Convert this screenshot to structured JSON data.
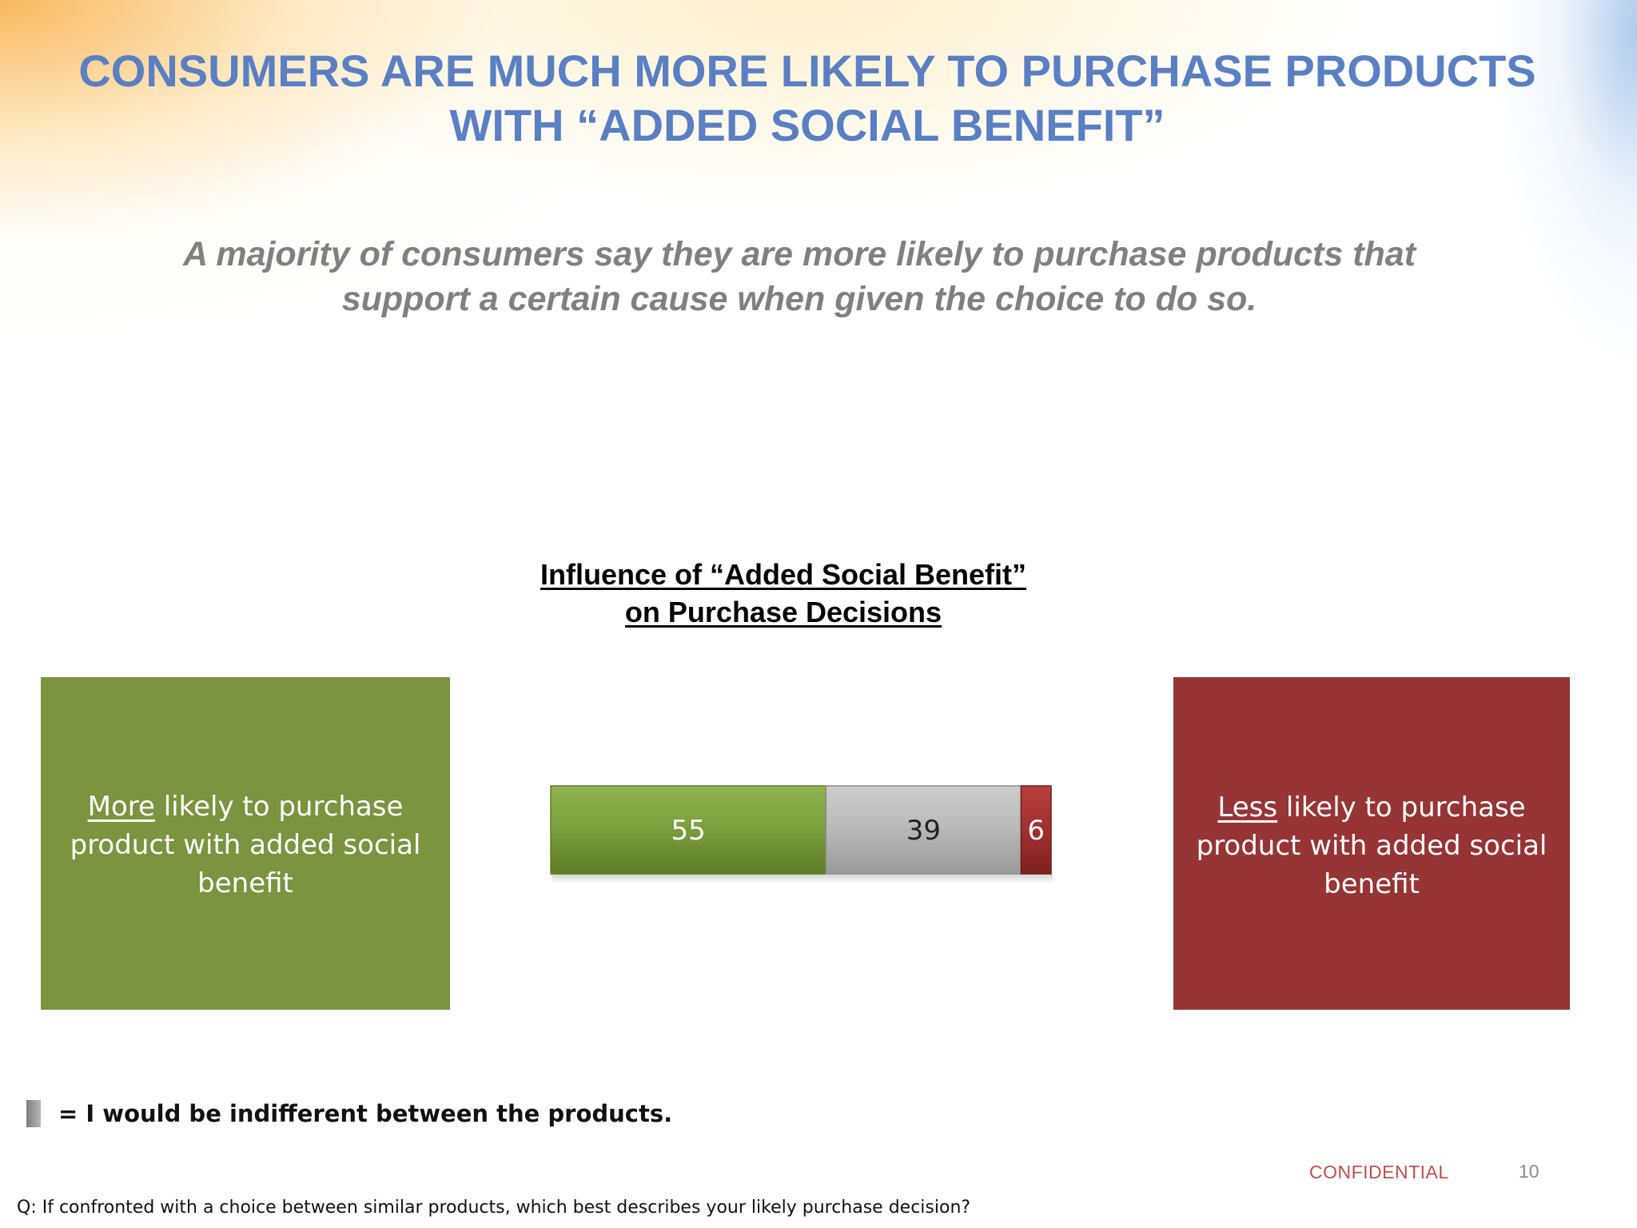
{
  "slide": {
    "title_lines": [
      "CONSUMERS ARE MUCH MORE LIKELY TO PURCHASE PRODUCTS",
      "WITH “ADDED SOCIAL BENEFIT”"
    ],
    "subtitle_lines": [
      "A majority of consumers say they are more likely to purchase products that",
      "support  a certain cause when given the choice to do so."
    ],
    "left_box": {
      "emphasis": "More",
      "rest_line1": " likely to purchase",
      "line2": "product with added social",
      "line3": "benefit",
      "color": "#7a943f"
    },
    "right_box": {
      "emphasis": "Less",
      "rest_line1": " likely to purchase",
      "line2": "product with added social",
      "line3": "benefit",
      "color": "#963436"
    },
    "legend_text": "= I would be indifferent between the products.",
    "confidential": "CONFIDENTIAL",
    "page_number": "10",
    "question": "Q: If confronted with a choice between similar products, which best describes your likely purchase decision?"
  },
  "chart_data": {
    "type": "bar",
    "orientation": "horizontal-stacked",
    "title_lines": [
      "Influence of “Added Social Benefit”",
      "on Purchase Decisions"
    ],
    "categories": [
      ""
    ],
    "series": [
      {
        "name": "More likely to purchase product with added social benefit",
        "values": [
          55
        ],
        "color": "#7a9e3b"
      },
      {
        "name": "I would be indifferent between the products.",
        "values": [
          39
        ],
        "color": "#b5b5b5"
      },
      {
        "name": "Less likely to purchase product with added social benefit",
        "values": [
          6
        ],
        "color": "#a0302e"
      }
    ],
    "data_labels": [
      "55",
      "39",
      "6"
    ],
    "grid": false
  }
}
